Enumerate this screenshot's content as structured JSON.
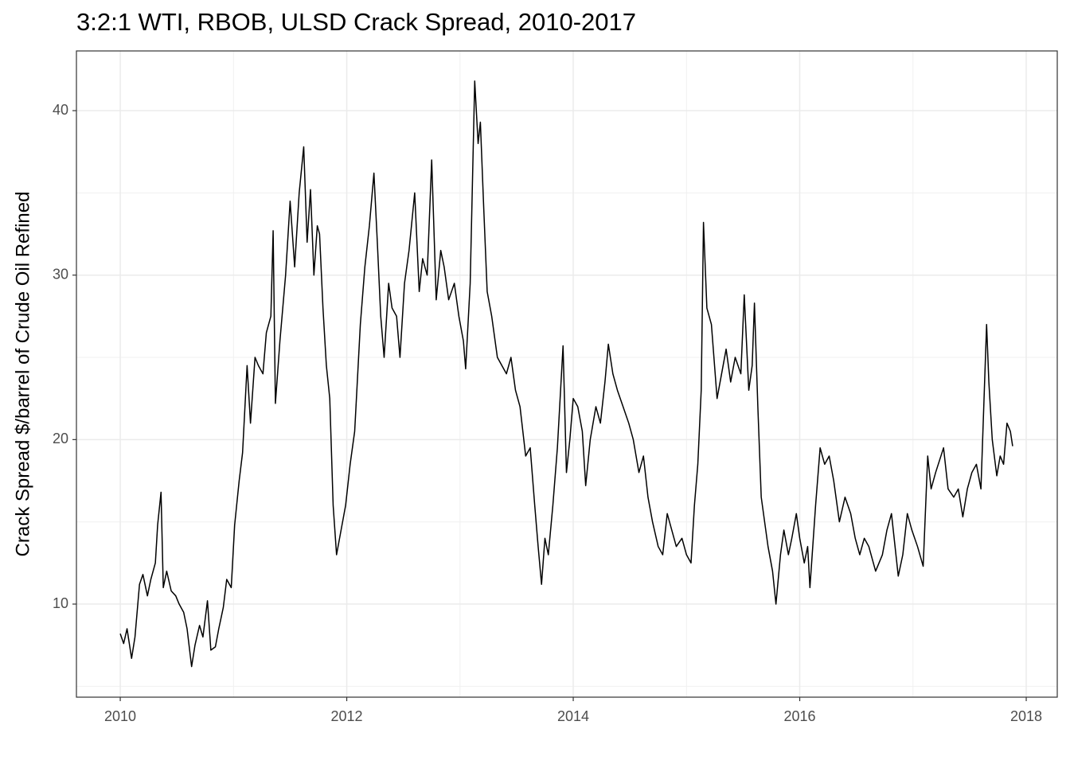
{
  "chart_data": {
    "type": "line",
    "title": "3:2:1 WTI, RBOB, ULSD Crack Spread, 2010-2017",
    "y_label": "Crack Spread $/barrel of Crude Oil Refined",
    "xlim": [
      2009.613,
      2018.274
    ],
    "ylim": [
      4.34,
      43.63
    ],
    "xticks": [
      2010,
      2012,
      2014,
      2016,
      2018
    ],
    "yticks": [
      10,
      20,
      30,
      40
    ],
    "x_minor_grid": [
      2011,
      2013,
      2015,
      2017
    ],
    "y_minor_grid": [
      5,
      15,
      25,
      35
    ],
    "grid": true,
    "series": [
      {
        "color": "#000000",
        "x": [
          2010.0,
          2010.03,
          2010.06,
          2010.1,
          2010.13,
          2010.17,
          2010.2,
          2010.24,
          2010.27,
          2010.31,
          2010.33,
          2010.36,
          2010.38,
          2010.41,
          2010.45,
          2010.49,
          2010.52,
          2010.56,
          2010.59,
          2010.63,
          2010.66,
          2010.7,
          2010.73,
          2010.77,
          2010.8,
          2010.84,
          2010.87,
          2010.91,
          2010.94,
          2010.98,
          2011.01,
          2011.05,
          2011.08,
          2011.12,
          2011.15,
          2011.19,
          2011.22,
          2011.26,
          2011.29,
          2011.33,
          2011.35,
          2011.37,
          2011.41,
          2011.46,
          2011.5,
          2011.54,
          2011.58,
          2011.62,
          2011.65,
          2011.68,
          2011.71,
          2011.74,
          2011.76,
          2011.79,
          2011.82,
          2011.85,
          2011.88,
          2011.91,
          2011.95,
          2011.99,
          2012.03,
          2012.07,
          2012.12,
          2012.16,
          2012.2,
          2012.24,
          2012.27,
          2012.3,
          2012.33,
          2012.37,
          2012.4,
          2012.44,
          2012.47,
          2012.51,
          2012.55,
          2012.6,
          2012.64,
          2012.67,
          2012.71,
          2012.75,
          2012.79,
          2012.83,
          2012.86,
          2012.9,
          2012.95,
          2012.99,
          2013.03,
          2013.05,
          2013.09,
          2013.13,
          2013.16,
          2013.18,
          2013.21,
          2013.24,
          2013.28,
          2013.33,
          2013.37,
          2013.41,
          2013.45,
          2013.49,
          2013.53,
          2013.58,
          2013.62,
          2013.66,
          2013.69,
          2013.72,
          2013.75,
          2013.78,
          2013.82,
          2013.86,
          2013.91,
          2013.94,
          2013.97,
          2014.0,
          2014.04,
          2014.08,
          2014.11,
          2014.15,
          2014.2,
          2014.24,
          2014.28,
          2014.31,
          2014.35,
          2014.39,
          2014.44,
          2014.49,
          2014.53,
          2014.58,
          2014.62,
          2014.66,
          2014.7,
          2014.75,
          2014.79,
          2014.83,
          2014.87,
          2014.91,
          2014.96,
          2015.0,
          2015.04,
          2015.07,
          2015.1,
          2015.13,
          2015.15,
          2015.18,
          2015.22,
          2015.27,
          2015.31,
          2015.35,
          2015.39,
          2015.43,
          2015.48,
          2015.51,
          2015.55,
          2015.58,
          2015.6,
          2015.63,
          2015.66,
          2015.69,
          2015.72,
          2015.76,
          2015.79,
          2015.83,
          2015.86,
          2015.9,
          2015.93,
          2015.97,
          2016.0,
          2016.04,
          2016.07,
          2016.09,
          2016.14,
          2016.18,
          2016.22,
          2016.26,
          2016.3,
          2016.35,
          2016.4,
          2016.45,
          2016.49,
          2016.53,
          2016.57,
          2016.61,
          2016.67,
          2016.73,
          2016.77,
          2016.81,
          2016.87,
          2016.91,
          2016.95,
          2016.99,
          2017.04,
          2017.09,
          2017.13,
          2017.16,
          2017.2,
          2017.27,
          2017.31,
          2017.36,
          2017.4,
          2017.44,
          2017.48,
          2017.52,
          2017.56,
          2017.6,
          2017.65,
          2017.67,
          2017.7,
          2017.74,
          2017.77,
          2017.8,
          2017.83,
          2017.86,
          2017.88
        ],
        "values": [
          8.2,
          7.6,
          8.5,
          6.7,
          8.0,
          11.2,
          11.8,
          10.5,
          11.5,
          12.5,
          14.8,
          16.8,
          11.0,
          12.0,
          10.8,
          10.5,
          10.0,
          9.5,
          8.5,
          6.2,
          7.5,
          8.7,
          8.0,
          10.2,
          7.2,
          7.4,
          8.5,
          9.8,
          11.5,
          11.0,
          14.8,
          17.5,
          19.2,
          24.5,
          21.0,
          25.0,
          24.5,
          24.0,
          26.5,
          27.5,
          32.7,
          22.2,
          26.0,
          30.0,
          34.5,
          30.5,
          35.0,
          37.8,
          32.0,
          35.2,
          30.0,
          33.0,
          32.5,
          28.0,
          24.5,
          22.5,
          16.0,
          13.0,
          14.5,
          16.0,
          18.5,
          20.5,
          27.0,
          30.5,
          33.0,
          36.2,
          32.0,
          27.5,
          25.0,
          29.5,
          28.0,
          27.5,
          25.0,
          29.5,
          31.5,
          35.0,
          29.0,
          31.0,
          30.0,
          37.0,
          28.5,
          31.5,
          30.5,
          28.5,
          29.5,
          27.5,
          26.0,
          24.3,
          29.5,
          41.8,
          38.0,
          39.3,
          34.0,
          29.0,
          27.5,
          25.0,
          24.5,
          24.0,
          25.0,
          23.0,
          22.0,
          19.0,
          19.5,
          16.0,
          13.5,
          11.2,
          14.0,
          13.0,
          16.0,
          19.5,
          25.7,
          18.0,
          20.0,
          22.5,
          22.0,
          20.5,
          17.2,
          20.0,
          22.0,
          21.0,
          23.5,
          25.8,
          24.0,
          23.0,
          22.0,
          21.0,
          20.0,
          18.0,
          19.0,
          16.5,
          15.0,
          13.5,
          13.0,
          15.5,
          14.5,
          13.5,
          14.0,
          13.0,
          12.5,
          16.0,
          18.5,
          23.0,
          33.2,
          28.0,
          27.0,
          22.5,
          24.0,
          25.5,
          23.5,
          25.0,
          24.0,
          28.8,
          23.0,
          24.5,
          28.3,
          22.0,
          16.5,
          15.0,
          13.5,
          12.0,
          10.0,
          13.0,
          14.5,
          13.0,
          14.0,
          15.5,
          14.0,
          12.5,
          13.5,
          11.0,
          16.0,
          19.5,
          18.5,
          19.0,
          17.5,
          15.0,
          16.5,
          15.5,
          14.0,
          13.0,
          14.0,
          13.5,
          12.0,
          13.0,
          14.5,
          15.5,
          11.7,
          13.0,
          15.5,
          14.5,
          13.5,
          12.3,
          19.0,
          17.0,
          18.0,
          19.5,
          17.0,
          16.5,
          17.0,
          15.3,
          17.0,
          18.0,
          18.5,
          17.0,
          27.0,
          23.5,
          20.0,
          17.8,
          19.0,
          18.5,
          21.0,
          20.5,
          19.6
        ]
      }
    ]
  }
}
